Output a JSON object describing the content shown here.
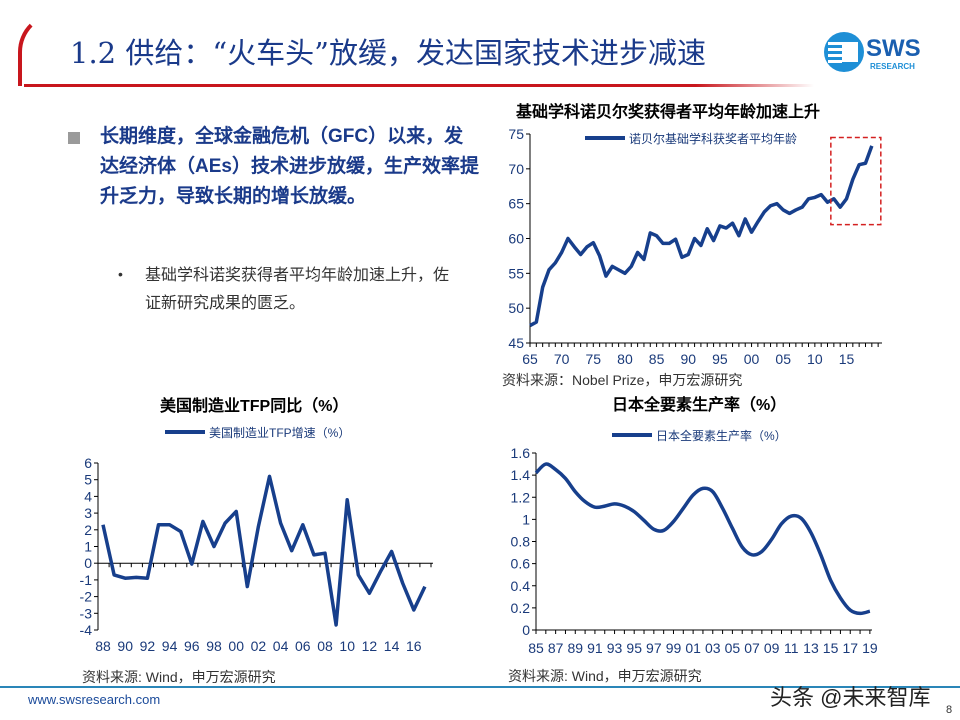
{
  "header": {
    "title": "1.2 供给：“火车头”放缓，发达国家技术进步减速",
    "logo_text": "SWS",
    "logo_sub": "RESEARCH"
  },
  "body": {
    "main_point": "长期维度，全球金融危机（GFC）以来，发达经济体（AEs）技术进步放缓，生产效率提升乏力，导致长期的增长放缓。",
    "sub_bullet": "•",
    "sub_point": "基础学科诺奖获得者平均年龄加速上升，佐证新研究成果的匮乏。"
  },
  "colors": {
    "line": "#173f8c",
    "accent_red": "#c8161d",
    "highlight_box": "#d42020",
    "title_blue": "#1a3a8a"
  },
  "chart_data": [
    {
      "type": "line",
      "title": "基础学科诺贝尔奖获得者平均年龄加速上升",
      "legend": "诺贝尔基础学科获奖者平均年龄",
      "legend_position": "top",
      "source": "资料来源：Nobel Prize，申万宏源研究",
      "x_start": 1965,
      "x_ticks": [
        "65",
        "70",
        "75",
        "80",
        "85",
        "90",
        "95",
        "00",
        "05",
        "10",
        "15"
      ],
      "y_ticks": [
        "45",
        "50",
        "55",
        "60",
        "65",
        "70",
        "75"
      ],
      "ylim": [
        45,
        75
      ],
      "highlight": "2013-2019",
      "values": [
        47.5,
        48,
        53,
        55.5,
        56.5,
        58,
        60,
        58.8,
        57.7,
        58.8,
        59.4,
        57.5,
        54.6,
        56,
        55.5,
        55,
        56,
        58,
        57,
        60.8,
        60.4,
        59.3,
        59.3,
        59.9,
        57.3,
        57.7,
        60,
        59,
        61.4,
        59.7,
        61.8,
        61.5,
        62.2,
        60.4,
        62.8,
        60.9,
        62.4,
        63.8,
        64.7,
        65,
        64.1,
        63.6,
        64.1,
        64.5,
        65.7,
        65.9,
        66.3,
        65.2,
        65.7,
        64.5,
        65.7,
        68.5,
        70.6,
        70.8,
        73.3
      ]
    },
    {
      "type": "line",
      "title": "美国制造业TFP同比（%）",
      "legend": "美国制造业TFP增速（%）",
      "legend_position": "top",
      "source": "资料来源: Wind，申万宏源研究",
      "x_start": 1988,
      "x_ticks": [
        "88",
        "90",
        "92",
        "94",
        "96",
        "98",
        "00",
        "02",
        "04",
        "06",
        "08",
        "10",
        "12",
        "14",
        "16"
      ],
      "y_ticks": [
        "-4",
        "-3",
        "-2",
        "-1",
        "0",
        "1",
        "2",
        "3",
        "4",
        "5",
        "6"
      ],
      "ylim": [
        -4,
        6
      ],
      "values": [
        2.3,
        -0.7,
        -0.9,
        -0.85,
        -0.9,
        2.3,
        2.3,
        1.9,
        -0.05,
        2.5,
        1,
        2.4,
        3.1,
        -1.4,
        2.2,
        5.2,
        2.4,
        0.75,
        2.3,
        0.5,
        0.6,
        -3.7,
        3.8,
        -0.7,
        -1.8,
        -0.5,
        0.7,
        -1.2,
        -2.8,
        -1.4
      ]
    },
    {
      "type": "line",
      "title": "日本全要素生产率（%）",
      "legend": "日本全要素生产率（%）",
      "legend_position": "top",
      "source": "资料来源: Wind，申万宏源研究",
      "x_start": 1985,
      "x_ticks": [
        "85",
        "87",
        "89",
        "91",
        "93",
        "95",
        "97",
        "99",
        "01",
        "03",
        "05",
        "07",
        "09",
        "11",
        "13",
        "15",
        "17",
        "19"
      ],
      "y_ticks": [
        "0",
        "0.2",
        "0.4",
        "0.6",
        "0.8",
        "1",
        "1.2",
        "1.4",
        "1.6"
      ],
      "ylim": [
        0,
        1.6
      ],
      "values": [
        1.42,
        1.5,
        1.45,
        1.37,
        1.25,
        1.16,
        1.11,
        1.12,
        1.14,
        1.12,
        1.07,
        0.99,
        0.91,
        0.9,
        0.98,
        1.1,
        1.22,
        1.28,
        1.25,
        1.1,
        0.92,
        0.75,
        0.68,
        0.71,
        0.82,
        0.96,
        1.03,
        1.01,
        0.88,
        0.68,
        0.45,
        0.29,
        0.18,
        0.15,
        0.17
      ]
    }
  ],
  "footer": {
    "url": "www.swsresearch.com",
    "page": "8",
    "watermark": "头条 @未来智库"
  }
}
